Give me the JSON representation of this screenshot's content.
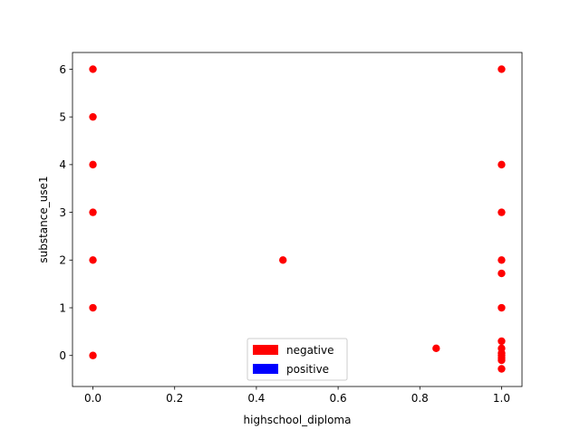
{
  "chart_data": {
    "type": "scatter",
    "title": "",
    "xlabel": "highschool_diploma",
    "ylabel": "substance_use1",
    "xlim": [
      -0.05,
      1.05
    ],
    "ylim": [
      -0.65,
      6.35
    ],
    "xticks": [
      0.0,
      0.2,
      0.4,
      0.6,
      0.8,
      1.0
    ],
    "xtick_labels": [
      "0.0",
      "0.2",
      "0.4",
      "0.6",
      "0.8",
      "1.0"
    ],
    "yticks": [
      0,
      1,
      2,
      3,
      4,
      5,
      6
    ],
    "ytick_labels": [
      "0",
      "1",
      "2",
      "3",
      "4",
      "5",
      "6"
    ],
    "grid": false,
    "legend": {
      "location": "lower center",
      "entries": [
        {
          "label": "negative",
          "color": "#ff0000"
        },
        {
          "label": "positive",
          "color": "#0000ff"
        }
      ]
    },
    "series": [
      {
        "color": "#ff0000",
        "points": [
          {
            "x": 0.0,
            "y": 6
          },
          {
            "x": 0.0,
            "y": 5
          },
          {
            "x": 0.0,
            "y": 4
          },
          {
            "x": 0.0,
            "y": 3
          },
          {
            "x": 0.0,
            "y": 2
          },
          {
            "x": 0.0,
            "y": 1
          },
          {
            "x": 0.0,
            "y": 0
          },
          {
            "x": 0.465,
            "y": 2
          },
          {
            "x": 0.84,
            "y": 0.15
          },
          {
            "x": 1.0,
            "y": 6
          },
          {
            "x": 1.0,
            "y": 4
          },
          {
            "x": 1.0,
            "y": 3
          },
          {
            "x": 1.0,
            "y": 2
          },
          {
            "x": 1.0,
            "y": 1.72
          },
          {
            "x": 1.0,
            "y": 1
          },
          {
            "x": 1.0,
            "y": 0.3
          },
          {
            "x": 1.0,
            "y": 0.15
          },
          {
            "x": 1.0,
            "y": 0.05
          },
          {
            "x": 1.0,
            "y": 0
          },
          {
            "x": 1.0,
            "y": -0.05
          },
          {
            "x": 1.0,
            "y": -0.1
          },
          {
            "x": 1.0,
            "y": -0.28
          }
        ]
      }
    ]
  }
}
